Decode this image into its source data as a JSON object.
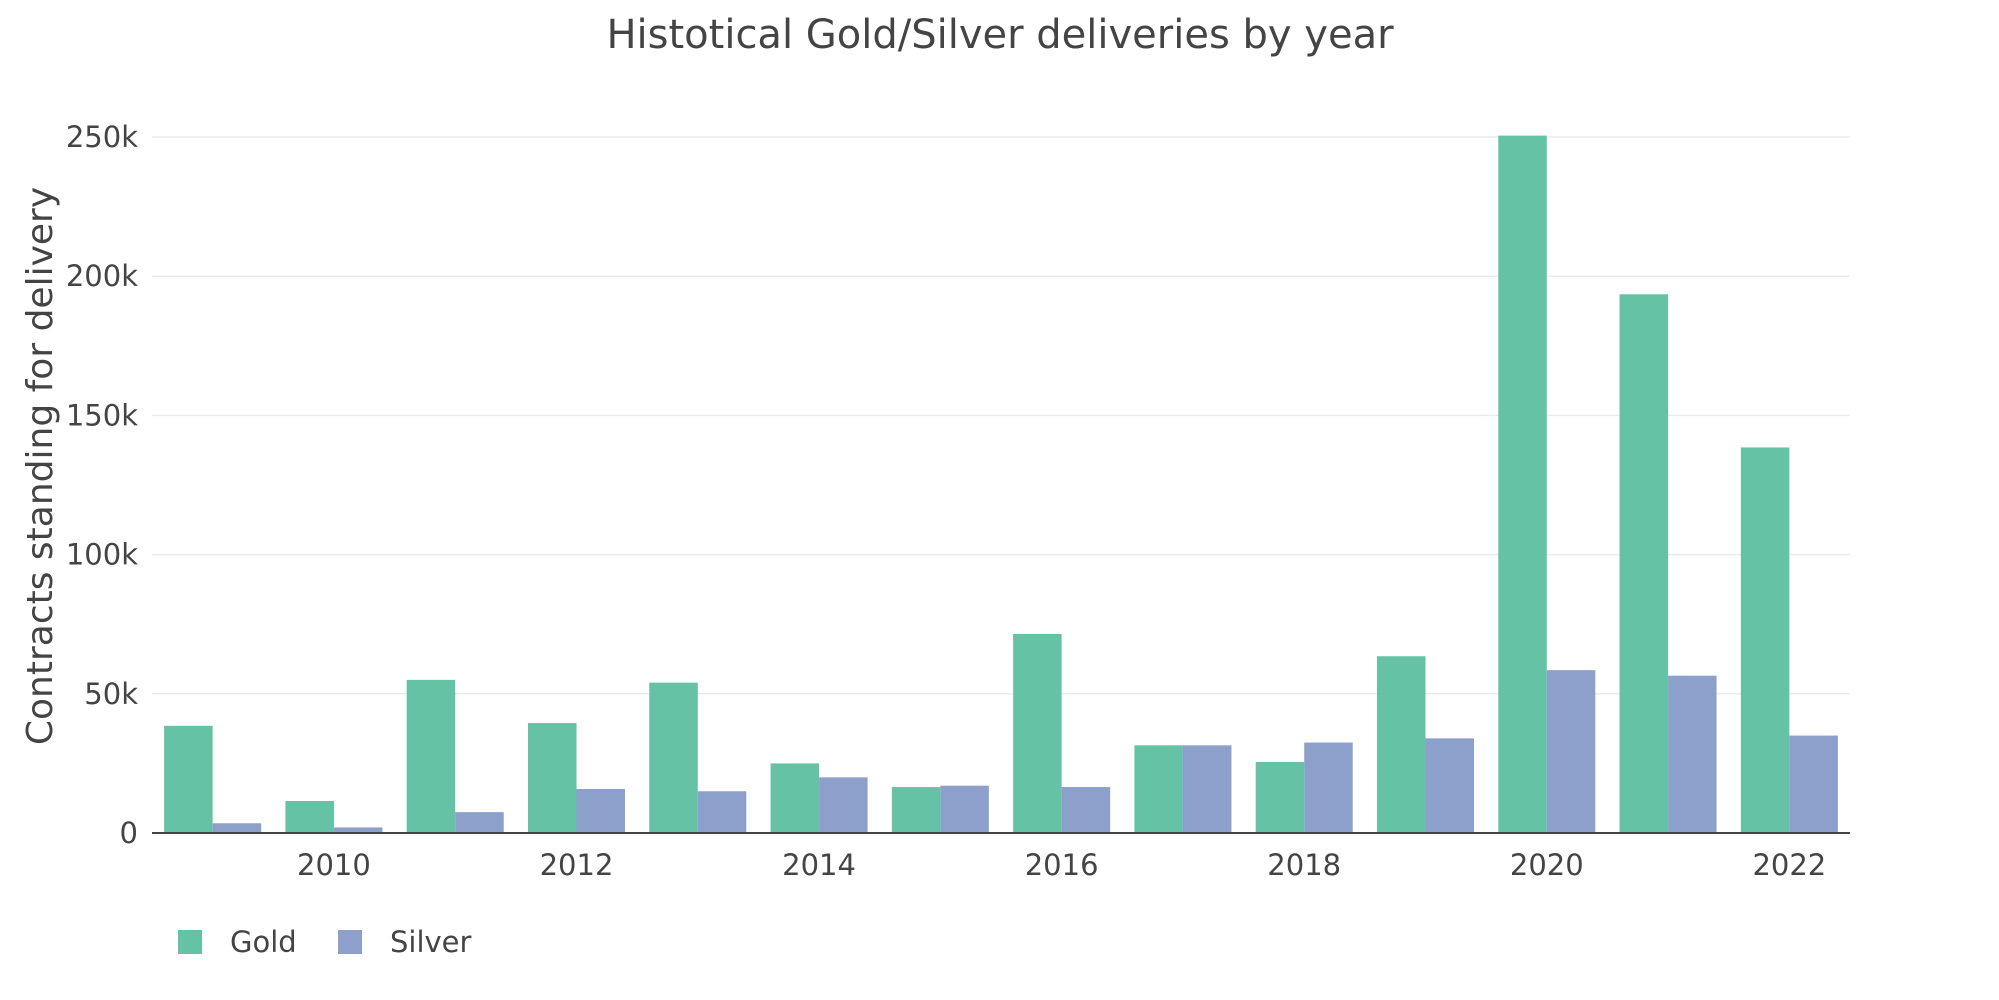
{
  "chart_data": {
    "type": "bar",
    "title": "Histotical Gold/Silver deliveries by year",
    "ylabel": "Contracts standing for delivery",
    "xlabel": "",
    "categories": [
      2009,
      2010,
      2011,
      2012,
      2013,
      2014,
      2015,
      2016,
      2017,
      2018,
      2019,
      2020,
      2021,
      2022
    ],
    "x_ticks": [
      "2010",
      "2012",
      "2014",
      "2016",
      "2018",
      "2020",
      "2022"
    ],
    "x_tick_values": [
      2010,
      2012,
      2014,
      2016,
      2018,
      2020,
      2022
    ],
    "y_ticks": [
      "0",
      "50k",
      "100k",
      "150k",
      "200k",
      "250k"
    ],
    "y_tick_values": [
      0,
      50000,
      100000,
      150000,
      200000,
      250000
    ],
    "ylim": [
      0,
      250000
    ],
    "xlim": [
      2008.5,
      2022.5
    ],
    "grid": "y",
    "legend_position": "bottom-left",
    "series": [
      {
        "name": "Gold",
        "color": "#66c2a5",
        "values": [
          38500,
          11500,
          55000,
          39500,
          54000,
          25000,
          16500,
          71500,
          31500,
          25500,
          63500,
          250500,
          193500,
          138500
        ]
      },
      {
        "name": "Silver",
        "color": "#8da0cb",
        "values": [
          3500,
          2000,
          7500,
          15800,
          15000,
          20000,
          17000,
          16500,
          31500,
          32500,
          34000,
          58500,
          56500,
          35000
        ]
      }
    ]
  }
}
